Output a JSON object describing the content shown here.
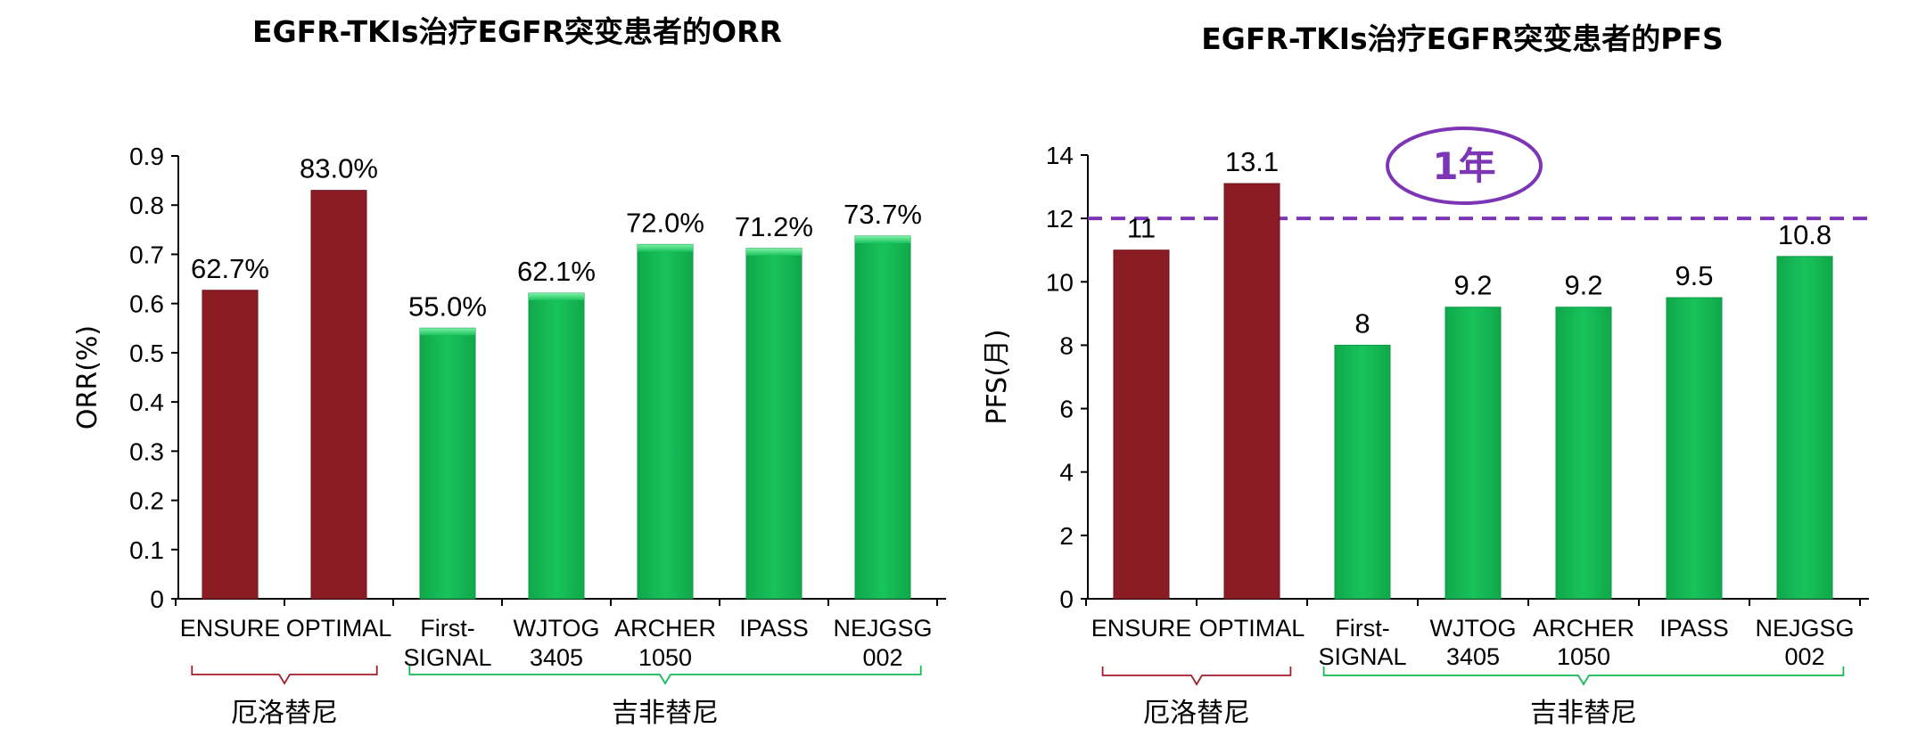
{
  "chart_data": [
    {
      "type": "bar",
      "title": "EGFR-TKIs治疗EGFR突变患者的ORR",
      "ylabel": "ORR(%)",
      "ylim": [
        0,
        0.9
      ],
      "yticks": [
        "0",
        "0.1",
        "0.2",
        "0.3",
        "0.4",
        "0.5",
        "0.6",
        "0.7",
        "0.8",
        "0.9"
      ],
      "categories": [
        [
          "ENSURE"
        ],
        [
          "OPTIMAL"
        ],
        [
          "First-",
          "SIGNAL"
        ],
        [
          "WJTOG",
          "3405"
        ],
        [
          "ARCHER",
          "1050"
        ],
        [
          "IPASS"
        ],
        [
          "NEJGSG",
          "002"
        ]
      ],
      "values": [
        0.627,
        0.83,
        0.55,
        0.621,
        0.72,
        0.712,
        0.737
      ],
      "data_labels": [
        "62.7%",
        "83.0%",
        "55.0%",
        "62.1%",
        "72.0%",
        "71.2%",
        "73.7%"
      ],
      "bar_colors": [
        "#8B1C24",
        "#8B1C24",
        "#13BA55",
        "#13BA55",
        "#13BA55",
        "#13BA55",
        "#13BA55"
      ],
      "groups": [
        {
          "label": "厄洛替尼",
          "from": 0,
          "to": 1,
          "color": "#A01C28"
        },
        {
          "label": "吉非替尼",
          "from": 2,
          "to": 6,
          "color": "#13BA55"
        }
      ],
      "grid": false
    },
    {
      "type": "bar",
      "title": "EGFR-TKIs治疗EGFR突变患者的PFS",
      "ylabel": "PFS(月)",
      "ylim": [
        0,
        14
      ],
      "yticks": [
        "0",
        "2",
        "4",
        "6",
        "8",
        "10",
        "12",
        "14"
      ],
      "categories": [
        [
          "ENSURE"
        ],
        [
          "OPTIMAL"
        ],
        [
          "First-",
          "SIGNAL"
        ],
        [
          "WJTOG",
          "3405"
        ],
        [
          "ARCHER",
          "1050"
        ],
        [
          "IPASS"
        ],
        [
          "NEJGSG",
          "002"
        ]
      ],
      "values": [
        11,
        13.1,
        8,
        9.2,
        9.2,
        9.5,
        10.8
      ],
      "data_labels": [
        "11",
        "13.1",
        "8",
        "9.2",
        "9.2",
        "9.5",
        "10.8"
      ],
      "bar_colors": [
        "#8B1C24",
        "#8B1C24",
        "#13BA55",
        "#13BA55",
        "#13BA55",
        "#13BA55",
        "#13BA55"
      ],
      "groups": [
        {
          "label": "厄洛替尼",
          "from": 0,
          "to": 1,
          "color": "#A01C28"
        },
        {
          "label": "吉非替尼",
          "from": 2,
          "to": 6,
          "color": "#13BA55"
        }
      ],
      "reference_line": {
        "value": 12,
        "color": "#7B35B5",
        "label": "1年"
      },
      "grid": false
    }
  ]
}
